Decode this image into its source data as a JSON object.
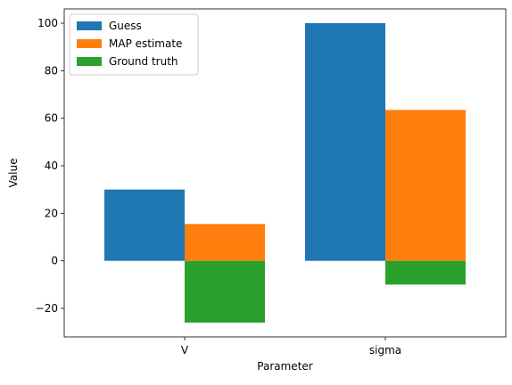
{
  "chart_data": {
    "type": "bar",
    "title": "",
    "xlabel": "Parameter",
    "ylabel": "Value",
    "categories": [
      "V",
      "sigma"
    ],
    "series": [
      {
        "name": "Guess",
        "color": "#1f77b4",
        "values": [
          30,
          100
        ]
      },
      {
        "name": "MAP estimate",
        "color": "#ff7f0e",
        "values": [
          15.5,
          63.5
        ]
      },
      {
        "name": "Ground truth",
        "color": "#2ca02c",
        "values": [
          -26,
          -10
        ]
      }
    ],
    "ylim": [
      -32,
      106
    ],
    "yticks": [
      -20,
      0,
      20,
      40,
      60,
      80,
      100
    ],
    "grid": false,
    "legend_position": "top-left"
  }
}
